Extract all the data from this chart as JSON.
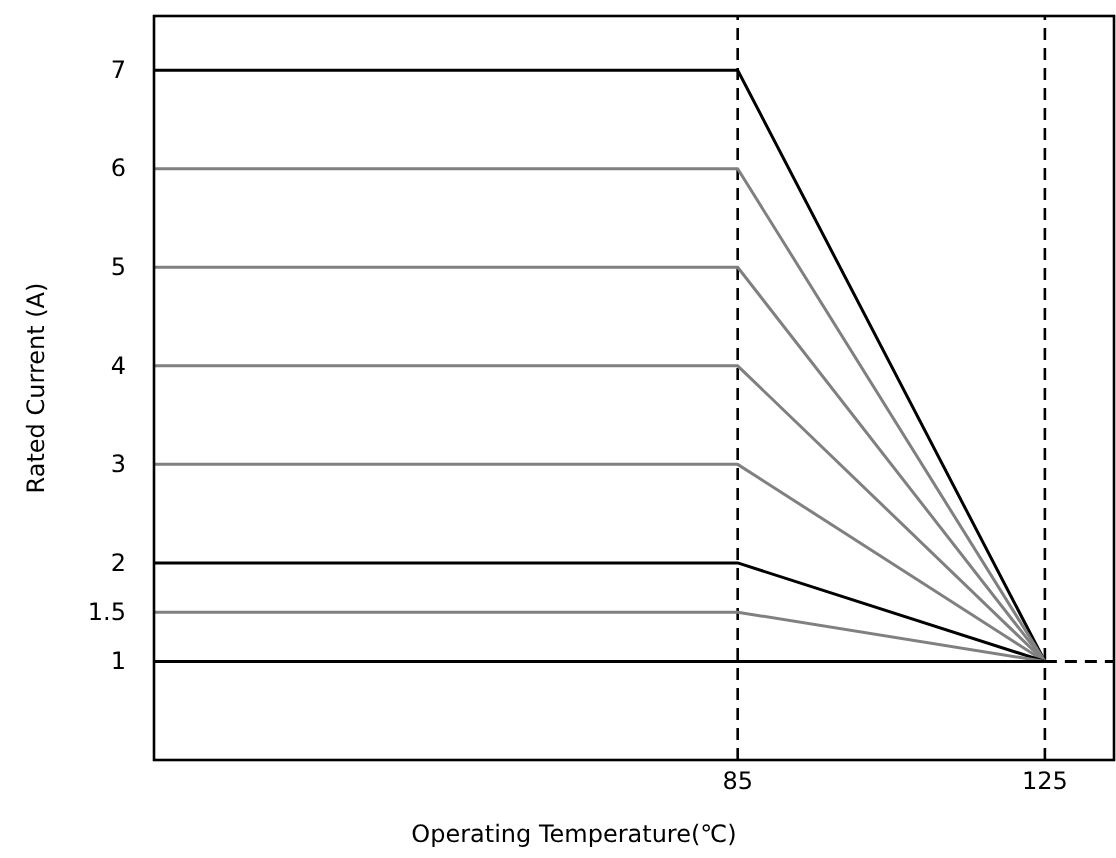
{
  "chart_data": {
    "type": "line",
    "xlabel": "Operating Temperature(℃)",
    "ylabel": "Rated Current (A)",
    "xlim": [
      9,
      134
    ],
    "xticks": [
      85,
      125
    ],
    "ylim": [
      0,
      7.55
    ],
    "yticks": [
      1,
      1.5,
      2,
      3,
      4,
      5,
      6,
      7
    ],
    "grid": false,
    "marker": "none",
    "line_style": "solid",
    "series": [
      {
        "color": "#000000",
        "x": [
          9,
          85,
          125
        ],
        "values": [
          7,
          7,
          1
        ]
      },
      {
        "color": "#808080",
        "x": [
          9,
          85,
          125
        ],
        "values": [
          6,
          6,
          1
        ]
      },
      {
        "color": "#808080",
        "x": [
          9,
          85,
          125
        ],
        "values": [
          5,
          5,
          1
        ]
      },
      {
        "color": "#808080",
        "x": [
          9,
          85,
          125
        ],
        "values": [
          4,
          4,
          1
        ]
      },
      {
        "color": "#808080",
        "x": [
          9,
          85,
          125
        ],
        "values": [
          3,
          3,
          1
        ]
      },
      {
        "color": "#000000",
        "x": [
          9,
          85,
          125
        ],
        "values": [
          2,
          2,
          1
        ]
      },
      {
        "color": "#808080",
        "x": [
          9,
          85,
          125
        ],
        "values": [
          1.5,
          1.5,
          1
        ]
      },
      {
        "color": "#000000",
        "x": [
          9,
          125
        ],
        "values": [
          1,
          1
        ]
      },
      {
        "color": "#000000",
        "x": [
          125,
          134
        ],
        "values": [
          1,
          1
        ],
        "line_style": "dashed"
      }
    ],
    "ref_lines": [
      {
        "axis": "x",
        "value": 85,
        "line_style": "dashed",
        "color": "#000000"
      },
      {
        "axis": "x",
        "value": 125,
        "line_style": "dashed",
        "color": "#000000"
      }
    ]
  }
}
